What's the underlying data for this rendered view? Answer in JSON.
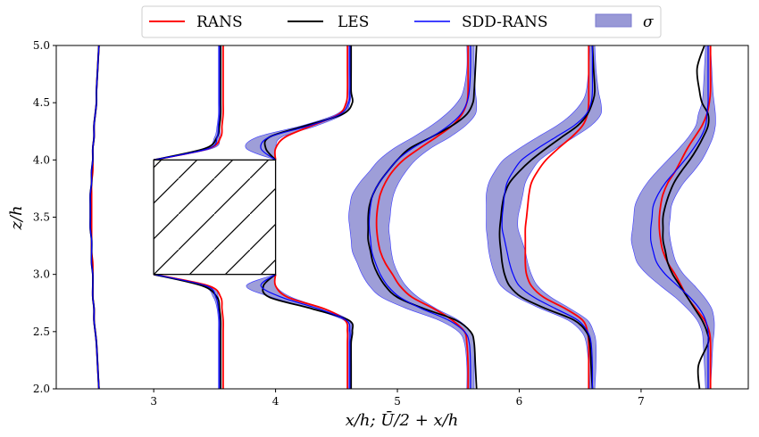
{
  "chart_data": {
    "type": "line",
    "xlabel": "x/h;   Ū/2 + x/h",
    "ylabel": "z/h",
    "xlim": [
      2.2,
      7.88
    ],
    "ylim": [
      2.0,
      5.0
    ],
    "x_ticks": [
      "3",
      "4",
      "5",
      "6",
      "7"
    ],
    "y_ticks": [
      "2.0",
      "2.5",
      "3.0",
      "3.5",
      "4.0",
      "4.5",
      "5.0"
    ],
    "legend_position": "top-center",
    "legend": [
      "RANS",
      "LES",
      "SDD-RANS",
      "σ"
    ],
    "colors": {
      "RANS": "#ff0000",
      "LES": "#000000",
      "SDD-RANS": "#0000ff",
      "sigma": "#7b7bd0"
    },
    "obstacle": {
      "x": [
        3.0,
        4.0
      ],
      "z": [
        3.0,
        4.0
      ],
      "hatch": "diagonal"
    },
    "z": [
      2.0,
      2.2,
      2.4,
      2.5,
      2.6,
      2.7,
      2.8,
      2.9,
      3.0,
      3.1,
      3.2,
      3.3,
      3.4,
      3.5,
      3.6,
      3.7,
      3.8,
      3.9,
      4.0,
      4.1,
      4.2,
      4.3,
      4.4,
      4.5,
      4.6,
      4.8,
      5.0
    ],
    "stations": [
      {
        "RANS": [
          2.55,
          2.54,
          2.53,
          2.52,
          2.51,
          2.51,
          2.5,
          2.5,
          2.5,
          2.5,
          2.49,
          2.49,
          2.49,
          2.49,
          2.49,
          2.49,
          2.49,
          2.5,
          2.5,
          2.5,
          2.51,
          2.51,
          2.52,
          2.53,
          2.53,
          2.54,
          2.55
        ],
        "LES": [
          2.55,
          2.54,
          2.53,
          2.52,
          2.51,
          2.51,
          2.5,
          2.5,
          2.5,
          2.49,
          2.49,
          2.49,
          2.48,
          2.48,
          2.48,
          2.48,
          2.49,
          2.49,
          2.5,
          2.5,
          2.51,
          2.51,
          2.52,
          2.53,
          2.53,
          2.54,
          2.55
        ],
        "SDD": [
          2.55,
          2.54,
          2.53,
          2.52,
          2.51,
          2.51,
          2.5,
          2.5,
          2.5,
          2.49,
          2.49,
          2.49,
          2.48,
          2.48,
          2.48,
          2.48,
          2.49,
          2.49,
          2.5,
          2.5,
          2.51,
          2.51,
          2.52,
          2.53,
          2.53,
          2.54,
          2.55
        ],
        "sigma": [
          0.005,
          0.005,
          0.005,
          0.005,
          0.005,
          0.005,
          0.005,
          0.005,
          0.005,
          0.005,
          0.005,
          0.005,
          0.005,
          0.005,
          0.005,
          0.005,
          0.005,
          0.005,
          0.005,
          0.005,
          0.005,
          0.005,
          0.005,
          0.005,
          0.005,
          0.005,
          0.005
        ]
      },
      {
        "RANS": [
          3.57,
          3.57,
          3.57,
          3.57,
          3.57,
          3.56,
          3.55,
          3.45,
          3.0,
          null,
          null,
          null,
          null,
          null,
          null,
          null,
          null,
          null,
          3.0,
          3.45,
          3.55,
          3.56,
          3.57,
          3.57,
          3.57,
          3.57,
          3.57
        ],
        "LES": [
          3.55,
          3.55,
          3.55,
          3.55,
          3.55,
          3.54,
          3.52,
          3.4,
          3.0,
          null,
          null,
          null,
          null,
          null,
          null,
          null,
          null,
          null,
          3.0,
          3.42,
          3.52,
          3.54,
          3.55,
          3.55,
          3.55,
          3.55,
          3.55
        ],
        "SDD": [
          3.54,
          3.54,
          3.54,
          3.54,
          3.54,
          3.53,
          3.51,
          3.43,
          3.0,
          null,
          null,
          null,
          null,
          null,
          null,
          null,
          null,
          null,
          3.0,
          3.45,
          3.52,
          3.53,
          3.54,
          3.54,
          3.54,
          3.54,
          3.54
        ],
        "sigma": [
          0.01,
          0.01,
          0.01,
          0.01,
          0.01,
          0.01,
          0.02,
          0.03,
          0.0,
          null,
          null,
          null,
          null,
          null,
          null,
          null,
          null,
          null,
          0.0,
          0.03,
          0.02,
          0.01,
          0.01,
          0.01,
          0.01,
          0.01,
          0.01
        ]
      },
      {
        "RANS": [
          4.59,
          4.59,
          4.59,
          4.59,
          4.57,
          4.4,
          4.1,
          4.0,
          4.0,
          null,
          null,
          null,
          null,
          null,
          null,
          null,
          null,
          null,
          4.0,
          4.0,
          4.08,
          4.3,
          4.52,
          4.58,
          4.59,
          4.59,
          4.59
        ],
        "LES": [
          4.62,
          4.62,
          4.62,
          4.63,
          4.6,
          4.3,
          3.95,
          3.9,
          4.0,
          null,
          null,
          null,
          null,
          null,
          null,
          null,
          null,
          null,
          4.0,
          3.92,
          3.95,
          4.25,
          4.55,
          4.63,
          4.62,
          4.62,
          4.62
        ],
        "SDD": [
          4.61,
          4.61,
          4.61,
          4.61,
          4.58,
          4.35,
          4.05,
          3.88,
          4.0,
          null,
          null,
          null,
          null,
          null,
          null,
          null,
          null,
          null,
          4.0,
          3.88,
          3.95,
          4.28,
          4.53,
          4.6,
          4.61,
          4.61,
          4.61
        ],
        "sigma": [
          0.01,
          0.01,
          0.01,
          0.01,
          0.02,
          0.05,
          0.08,
          0.12,
          0.0,
          null,
          null,
          null,
          null,
          null,
          null,
          null,
          null,
          null,
          0.0,
          0.12,
          0.1,
          0.06,
          0.03,
          0.01,
          0.01,
          0.01,
          0.01
        ]
      },
      {
        "RANS": [
          5.58,
          5.58,
          5.57,
          5.55,
          5.45,
          5.3,
          5.12,
          5.02,
          4.96,
          4.9,
          4.86,
          4.84,
          4.83,
          4.83,
          4.84,
          4.86,
          4.9,
          4.96,
          5.05,
          5.18,
          5.32,
          5.45,
          5.53,
          5.57,
          5.58,
          5.58,
          5.58
        ],
        "LES": [
          5.65,
          5.64,
          5.63,
          5.6,
          5.48,
          5.22,
          5.0,
          4.9,
          4.84,
          4.8,
          4.78,
          4.76,
          4.76,
          4.76,
          4.77,
          4.8,
          4.85,
          4.92,
          5.0,
          5.1,
          5.28,
          5.45,
          5.57,
          5.62,
          5.63,
          5.64,
          5.65
        ],
        "SDD": [
          5.6,
          5.6,
          5.59,
          5.55,
          5.42,
          5.2,
          5.02,
          4.92,
          4.86,
          4.82,
          4.79,
          4.78,
          4.77,
          4.77,
          4.78,
          4.8,
          4.85,
          4.92,
          5.0,
          5.12,
          5.28,
          5.42,
          5.52,
          5.57,
          5.59,
          5.6,
          5.6
        ],
        "sigma": [
          0.03,
          0.03,
          0.04,
          0.05,
          0.08,
          0.12,
          0.15,
          0.15,
          0.15,
          0.15,
          0.16,
          0.16,
          0.16,
          0.17,
          0.17,
          0.17,
          0.16,
          0.15,
          0.15,
          0.15,
          0.15,
          0.14,
          0.12,
          0.08,
          0.05,
          0.03,
          0.03
        ]
      },
      {
        "RANS": [
          6.57,
          6.57,
          6.57,
          6.56,
          6.52,
          6.38,
          6.2,
          6.1,
          6.06,
          6.05,
          6.05,
          6.05,
          6.05,
          6.06,
          6.07,
          6.08,
          6.1,
          6.15,
          6.22,
          6.32,
          6.43,
          6.52,
          6.56,
          6.57,
          6.57,
          6.57,
          6.57
        ],
        "LES": [
          6.6,
          6.59,
          6.58,
          6.55,
          6.45,
          6.22,
          6.02,
          5.92,
          5.88,
          5.86,
          5.85,
          5.84,
          5.84,
          5.85,
          5.86,
          5.88,
          5.92,
          6.0,
          6.1,
          6.22,
          6.35,
          6.48,
          6.56,
          6.6,
          6.62,
          6.61,
          6.6
        ],
        "SDD": [
          6.6,
          6.6,
          6.59,
          6.56,
          6.48,
          6.3,
          6.12,
          6.0,
          5.95,
          5.92,
          5.9,
          5.88,
          5.86,
          5.86,
          5.87,
          5.88,
          5.9,
          5.95,
          6.02,
          6.15,
          6.3,
          6.45,
          6.55,
          6.59,
          6.6,
          6.6,
          6.6
        ],
        "sigma": [
          0.02,
          0.03,
          0.04,
          0.05,
          0.08,
          0.12,
          0.14,
          0.15,
          0.15,
          0.15,
          0.15,
          0.14,
          0.13,
          0.13,
          0.14,
          0.15,
          0.15,
          0.15,
          0.15,
          0.15,
          0.15,
          0.14,
          0.12,
          0.08,
          0.05,
          0.03,
          0.02
        ]
      },
      {
        "RANS": [
          7.57,
          7.57,
          7.57,
          7.56,
          7.52,
          7.45,
          7.38,
          7.33,
          7.28,
          7.22,
          7.18,
          7.16,
          7.15,
          7.15,
          7.16,
          7.18,
          7.22,
          7.28,
          7.33,
          7.38,
          7.44,
          7.5,
          7.54,
          7.56,
          7.57,
          7.57,
          7.57
        ],
        "LES": [
          7.48,
          7.47,
          7.55,
          7.54,
          7.5,
          7.44,
          7.38,
          7.32,
          7.26,
          7.22,
          7.2,
          7.18,
          7.18,
          7.18,
          7.2,
          7.23,
          7.27,
          7.33,
          7.4,
          7.46,
          7.51,
          7.55,
          7.55,
          7.5,
          7.48,
          7.46,
          7.52
        ],
        "SDD": [
          7.55,
          7.55,
          7.55,
          7.55,
          7.53,
          7.48,
          7.4,
          7.3,
          7.2,
          7.13,
          7.1,
          7.08,
          7.08,
          7.09,
          7.1,
          7.14,
          7.2,
          7.28,
          7.36,
          7.43,
          7.49,
          7.53,
          7.54,
          7.55,
          7.55,
          7.55,
          7.55
        ],
        "sigma": [
          0.02,
          0.03,
          0.04,
          0.05,
          0.07,
          0.1,
          0.12,
          0.14,
          0.15,
          0.16,
          0.16,
          0.16,
          0.15,
          0.15,
          0.15,
          0.15,
          0.15,
          0.15,
          0.14,
          0.12,
          0.1,
          0.08,
          0.07,
          0.05,
          0.04,
          0.03,
          0.02
        ]
      }
    ]
  }
}
